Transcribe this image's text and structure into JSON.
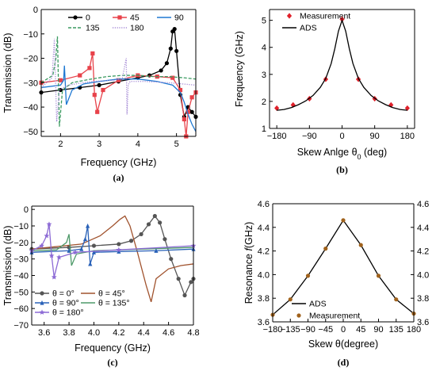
{
  "chart_data": [
    {
      "panel": "(a)",
      "type": "line",
      "xlabel": "Frequency (GHz)",
      "ylabel": "Transmission (dB)",
      "xlim": [
        1.5,
        5.5
      ],
      "ylim": [
        -52,
        0
      ],
      "xticks": [
        2,
        3,
        4,
        5
      ],
      "yticks": [
        0,
        -10,
        -20,
        -30,
        -40,
        -50
      ],
      "legend_position": "top-center",
      "series": [
        {
          "name": "0",
          "color": "#000000",
          "marker": "circle",
          "x": [
            1.5,
            2.0,
            2.5,
            3.0,
            3.5,
            4.0,
            4.3,
            4.6,
            4.75,
            4.85,
            4.9,
            4.95,
            5.0,
            5.1,
            5.2,
            5.3,
            5.4,
            5.5
          ],
          "y": [
            -34,
            -33,
            -32,
            -31,
            -29.5,
            -28,
            -27,
            -25,
            -22,
            -16,
            -9,
            -8,
            -17,
            -35,
            -44,
            -40,
            -42,
            -44
          ]
        },
        {
          "name": "45",
          "color": "#e8424a",
          "marker": "square",
          "x": [
            1.5,
            2.0,
            2.5,
            2.75,
            2.83,
            2.88,
            2.95,
            3.1,
            3.5,
            4.0,
            4.5,
            4.9,
            5.1,
            5.2,
            5.25,
            5.3,
            5.4,
            5.5
          ],
          "y": [
            -30,
            -29,
            -27,
            -24,
            -18,
            -35,
            -42,
            -33,
            -29,
            -27,
            -27.5,
            -28,
            -33,
            -45,
            -52,
            -42,
            -36,
            -34
          ]
        },
        {
          "name": "90",
          "color": "#1e78d2",
          "marker": "none",
          "x": [
            1.5,
            2.0,
            2.08,
            2.1,
            2.15,
            2.3,
            2.6,
            3.0,
            3.5,
            4.0,
            4.5,
            4.9,
            5.1,
            5.2,
            5.3,
            5.4,
            5.5
          ],
          "y": [
            -32,
            -31,
            -29,
            -23,
            -39,
            -33,
            -30.5,
            -29.5,
            -28.5,
            -28.5,
            -29.5,
            -31,
            -34,
            -38,
            -43,
            -47,
            -50
          ]
        },
        {
          "name": "135",
          "color": "#3a9a60",
          "marker": "none",
          "dash": "dashed",
          "x": [
            1.5,
            1.8,
            1.88,
            1.92,
            1.97,
            2.05,
            2.3,
            2.8,
            3.2,
            3.6,
            4.0,
            4.4,
            4.8,
            5.2,
            5.5
          ],
          "y": [
            -30,
            -27,
            -20,
            -11,
            -48,
            -33,
            -30,
            -28.5,
            -27.5,
            -27,
            -27,
            -27.5,
            -27.5,
            -28,
            -28.5
          ]
        },
        {
          "name": "180",
          "color": "#a58ad5",
          "marker": "none",
          "dash": "dotted",
          "x": [
            1.5,
            1.78,
            1.84,
            1.9,
            1.97,
            2.2,
            2.8,
            3.4,
            3.6,
            3.7,
            3.72,
            3.75,
            3.8,
            4.2,
            4.8,
            5.5
          ],
          "y": [
            -32,
            -28,
            -12,
            -46,
            -33,
            -31,
            -29.5,
            -29,
            -28,
            -20,
            -43,
            -31,
            -29.5,
            -29.5,
            -30,
            -31
          ]
        }
      ]
    },
    {
      "panel": "(b)",
      "type": "line",
      "xlabel": "Skew Anlge θ",
      "xlabel_sub": "0",
      "xlabel_unit": " (deg)",
      "ylabel": "Frequency (GHz)",
      "xlim": [
        -200,
        200
      ],
      "ylim": [
        1,
        5.4
      ],
      "xticks": [
        -180,
        -90,
        0,
        90,
        180
      ],
      "yticks": [
        1,
        2,
        3,
        4,
        5
      ],
      "legend_position": "top-left",
      "series": [
        {
          "name": "Measurement",
          "color": "#e0202a",
          "marker": "diamond",
          "line": false,
          "x": [
            -180,
            -135,
            -90,
            -45,
            0,
            45,
            90,
            135,
            180
          ],
          "y": [
            1.75,
            1.87,
            2.1,
            2.82,
            5.04,
            2.82,
            2.1,
            1.87,
            1.75
          ]
        },
        {
          "name": "ADS",
          "color": "#000000",
          "marker": "none",
          "x": [
            -180,
            -160,
            -140,
            -120,
            -100,
            -80,
            -60,
            -45,
            -30,
            -20,
            -10,
            0,
            10,
            20,
            30,
            45,
            60,
            80,
            100,
            120,
            140,
            160,
            180
          ],
          "y": [
            1.67,
            1.7,
            1.77,
            1.88,
            2.02,
            2.22,
            2.52,
            2.85,
            3.4,
            3.95,
            4.6,
            5.0,
            4.6,
            3.95,
            3.4,
            2.85,
            2.52,
            2.22,
            2.02,
            1.88,
            1.77,
            1.7,
            1.67
          ]
        }
      ]
    },
    {
      "panel": "(c)",
      "type": "line",
      "xlabel": "Frequency (GHz)",
      "ylabel": "Transmission (dB)",
      "xlim": [
        3.5,
        4.8
      ],
      "ylim": [
        -70,
        2
      ],
      "xticks": [
        3.6,
        3.8,
        4.0,
        4.2,
        4.4,
        4.6,
        4.8
      ],
      "yticks": [
        0,
        -10,
        -20,
        -30,
        -40,
        -50,
        -60,
        -70
      ],
      "legend_position": "bottom-left",
      "series": [
        {
          "name": "θ = 0°",
          "color": "#555555",
          "marker": "circle",
          "x": [
            3.5,
            3.8,
            4.0,
            4.2,
            4.3,
            4.38,
            4.44,
            4.49,
            4.53,
            4.57,
            4.62,
            4.68,
            4.73,
            4.78,
            4.8
          ],
          "y": [
            -24,
            -23,
            -22,
            -21,
            -19,
            -15,
            -9,
            -4,
            -8,
            -18,
            -30,
            -42,
            -52,
            -44,
            -42
          ]
        },
        {
          "name": "θ = 45°",
          "color": "#a0522d",
          "marker": "none",
          "x": [
            3.5,
            3.9,
            4.05,
            4.15,
            4.21,
            4.25,
            4.29,
            4.35,
            4.42,
            4.46,
            4.5,
            4.6,
            4.7,
            4.8
          ],
          "y": [
            -24,
            -21,
            -16,
            -10,
            -6,
            -4,
            -10,
            -26,
            -46,
            -56,
            -42,
            -36,
            -34,
            -33
          ]
        },
        {
          "name": "θ = 90°",
          "color": "#2a62b8",
          "marker": "triangle",
          "x": [
            3.5,
            3.8,
            3.9,
            3.93,
            3.95,
            3.97,
            4.0,
            4.2,
            4.5,
            4.8
          ],
          "y": [
            -26,
            -25,
            -24,
            -18,
            -10,
            -33,
            -26,
            -25.5,
            -25,
            -24
          ]
        },
        {
          "name": "θ = 135°",
          "color": "#4f9a6a",
          "marker": "none",
          "x": [
            3.5,
            3.7,
            3.78,
            3.8,
            3.82,
            3.86,
            4.0,
            4.4,
            4.8
          ],
          "y": [
            -25,
            -24.5,
            -20,
            -15,
            -34,
            -27,
            -25,
            -24,
            -23
          ]
        },
        {
          "name": "θ = 180°",
          "color": "#8c6ad5",
          "marker": "star",
          "x": [
            3.5,
            3.58,
            3.62,
            3.64,
            3.66,
            3.68,
            3.72,
            3.85,
            4.2,
            4.8
          ],
          "y": [
            -25,
            -22,
            -16,
            -9,
            -28,
            -41,
            -29,
            -26,
            -24.5,
            -22
          ]
        }
      ]
    },
    {
      "panel": "(d)",
      "type": "line",
      "xlabel": "Skew θ(degree)",
      "ylabel": "Resonance ",
      "ylabel_var": "f",
      "ylabel_unit": "(GHz)",
      "xlim": [
        -180,
        180
      ],
      "ylim": [
        3.6,
        4.6
      ],
      "xticks": [
        -180,
        -135,
        -90,
        -45,
        0,
        45,
        90,
        135,
        180
      ],
      "yticks": [
        3.6,
        3.8,
        4.0,
        4.2,
        4.4,
        4.6
      ],
      "legend_position": "bottom-center",
      "series": [
        {
          "name": "ADS",
          "color": "#000000",
          "marker": "none",
          "x": [
            -180,
            -135,
            -90,
            -45,
            0,
            45,
            90,
            135,
            180
          ],
          "y": [
            3.66,
            3.79,
            3.99,
            4.22,
            4.46,
            4.25,
            3.99,
            3.79,
            3.67
          ]
        },
        {
          "name": "Measurement",
          "color": "#a0621c",
          "marker": "circle",
          "line": false,
          "x": [
            -180,
            -135,
            -90,
            -45,
            0,
            45,
            90,
            135,
            180
          ],
          "y": [
            3.66,
            3.79,
            3.99,
            4.22,
            4.46,
            4.25,
            3.99,
            3.79,
            3.67
          ]
        }
      ]
    }
  ]
}
